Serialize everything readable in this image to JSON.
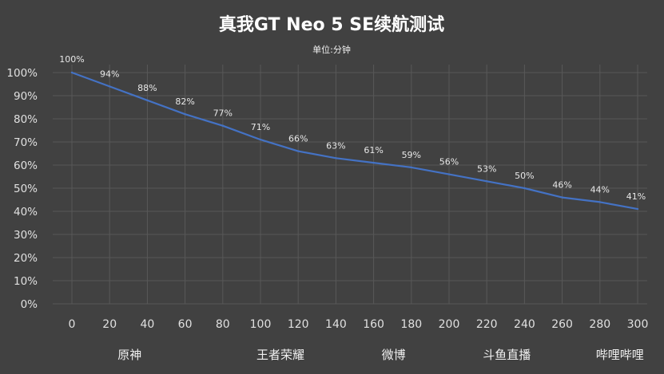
{
  "chart_data": {
    "type": "line",
    "title": "真我GT Neo 5 SE续航测试",
    "subtitle": "单位:分钟",
    "x": [
      0,
      20,
      40,
      60,
      80,
      100,
      120,
      140,
      160,
      180,
      200,
      220,
      240,
      260,
      280,
      300
    ],
    "xticks": [
      "0",
      "20",
      "40",
      "60",
      "80",
      "100",
      "120",
      "140",
      "160",
      "180",
      "200",
      "220",
      "240",
      "260",
      "280",
      "300"
    ],
    "series": [
      {
        "values": [
          100,
          94,
          88,
          82,
          77,
          71,
          66,
          63,
          61,
          59,
          56,
          53,
          50,
          46,
          44,
          41
        ],
        "labels": [
          "100%",
          "94%",
          "88%",
          "82%",
          "77%",
          "71%",
          "66%",
          "63%",
          "61%",
          "59%",
          "56%",
          "53%",
          "50%",
          "46%",
          "44%",
          "41%"
        ]
      }
    ],
    "ylim": [
      0,
      100
    ],
    "yticks": [
      "0%",
      "10%",
      "20%",
      "30%",
      "40%",
      "50%",
      "60%",
      "70%",
      "80%",
      "90%",
      "100%"
    ],
    "xlim": [
      0,
      300
    ],
    "grid": true,
    "segments": [
      {
        "label": "原神",
        "x": 20
      },
      {
        "label": "王者荣耀",
        "x": 100
      },
      {
        "label": "微博",
        "x": 160
      },
      {
        "label": "斗鱼直播",
        "x": 220
      },
      {
        "label": "哔哩哔哩",
        "x": 280
      }
    ],
    "colors": {
      "background": "#414141",
      "line": "#4472c4",
      "grid": "#585858",
      "text": "#e6e6e6"
    }
  }
}
